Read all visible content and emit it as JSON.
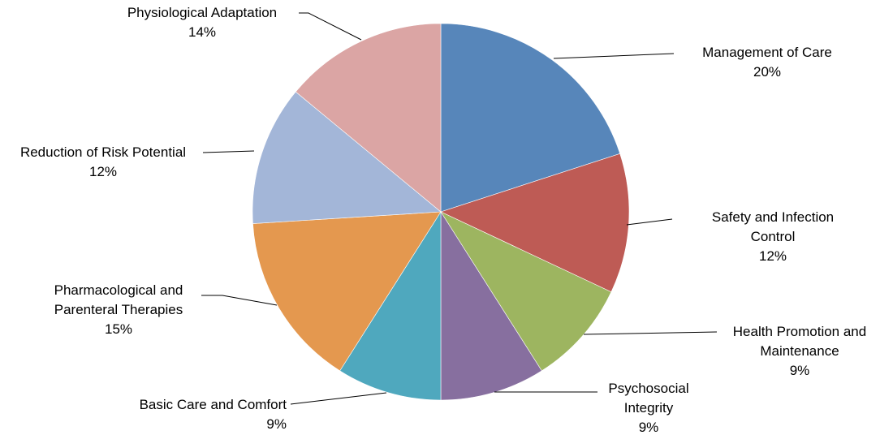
{
  "chart_data": {
    "type": "pie",
    "start_angle_deg": 0,
    "direction": "clockwise",
    "legend": "none",
    "slices": [
      {
        "label_lines": [
          "Management of Care"
        ],
        "value": 20,
        "value_label": "20%",
        "color": "#5786BA"
      },
      {
        "label_lines": [
          "Safety and Infection",
          "Control"
        ],
        "value": 12,
        "value_label": "12%",
        "color": "#BE5B55"
      },
      {
        "label_lines": [
          "Health Promotion and",
          "Maintenance"
        ],
        "value": 9,
        "value_label": "9%",
        "color": "#9DB560"
      },
      {
        "label_lines": [
          "Psychosocial",
          "Integrity"
        ],
        "value": 9,
        "value_label": "9%",
        "color": "#876F9F"
      },
      {
        "label_lines": [
          "Basic Care and Comfort"
        ],
        "value": 9,
        "value_label": "9%",
        "color": "#4FA8BE"
      },
      {
        "label_lines": [
          "Pharmacological and",
          "Parenteral Therapies"
        ],
        "value": 15,
        "value_label": "15%",
        "color": "#E4984F"
      },
      {
        "label_lines": [
          "Reduction of Risk Potential"
        ],
        "value": 12,
        "value_label": "12%",
        "color": "#A3B6D8"
      },
      {
        "label_lines": [
          "Physiological Adaptation"
        ],
        "value": 14,
        "value_label": "14%",
        "color": "#DBA5A4"
      }
    ]
  }
}
